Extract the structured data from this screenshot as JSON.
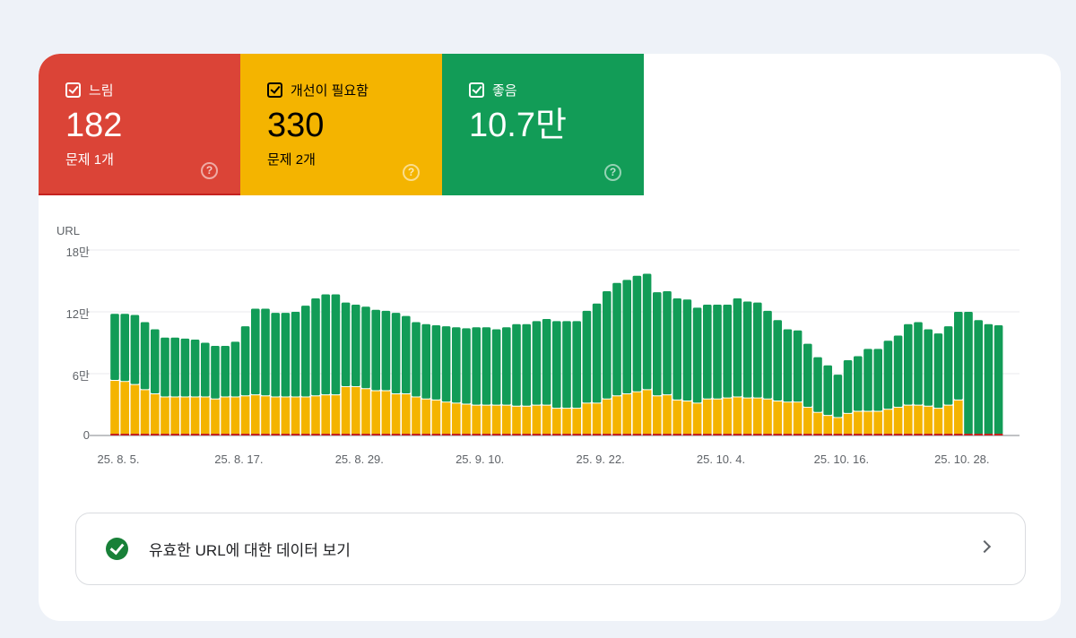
{
  "tiles": [
    {
      "label": "느림",
      "value": "182",
      "issues": "문제 1개",
      "color": "#db4437"
    },
    {
      "label": "개선이 필요함",
      "value": "330",
      "issues": "문제 2개",
      "color": "#f4b400"
    },
    {
      "label": "좋음",
      "value": "10.7만",
      "color": "#129c57"
    }
  ],
  "help_glyph": "?",
  "chart_data": {
    "type": "bar",
    "stacked": true,
    "unit": "만",
    "ylabel": "URL",
    "ylim": [
      0,
      18
    ],
    "y_ticks": [
      {
        "v": 0,
        "label": "0"
      },
      {
        "v": 6,
        "label": "6만"
      },
      {
        "v": 12,
        "label": "12만"
      },
      {
        "v": 18,
        "label": "18만"
      }
    ],
    "x_ticks": [
      {
        "i": 0,
        "label": "25. 8. 5."
      },
      {
        "i": 12,
        "label": "25. 8. 17."
      },
      {
        "i": 24,
        "label": "25. 8. 29."
      },
      {
        "i": 36,
        "label": "25. 9. 10."
      },
      {
        "i": 48,
        "label": "25. 9. 22."
      },
      {
        "i": 60,
        "label": "25. 10. 4."
      },
      {
        "i": 72,
        "label": "25. 10. 16."
      },
      {
        "i": 84,
        "label": "25. 10. 28."
      }
    ],
    "totals": [
      11.8,
      11.8,
      11.7,
      11.0,
      10.3,
      9.5,
      9.5,
      9.4,
      9.3,
      9.0,
      8.7,
      8.7,
      9.1,
      10.6,
      12.3,
      12.3,
      11.9,
      11.9,
      12.0,
      12.6,
      13.3,
      13.7,
      13.7,
      12.9,
      12.7,
      12.5,
      12.2,
      12.1,
      11.9,
      11.6,
      11.0,
      10.8,
      10.7,
      10.6,
      10.5,
      10.4,
      10.5,
      10.5,
      10.3,
      10.5,
      10.8,
      10.8,
      11.1,
      11.3,
      11.1,
      11.1,
      11.1,
      12.1,
      12.8,
      14.0,
      14.8,
      15.1,
      15.5,
      15.7,
      13.9,
      14.0,
      13.3,
      13.2,
      12.4,
      12.7,
      12.7,
      12.7,
      13.3,
      13.0,
      12.9,
      12.1,
      11.2,
      10.3,
      10.2,
      8.9,
      7.6,
      6.8,
      5.9,
      7.3,
      7.7,
      8.4,
      8.4,
      9.2,
      9.7,
      10.8,
      11.0,
      10.3,
      9.9,
      10.6,
      12.0,
      12.0,
      11.2,
      10.8,
      10.7
    ],
    "series": [
      {
        "name": "느림",
        "color": "#c5221f",
        "values": [
          0.02
        ]
      },
      {
        "name": "개선이 필요함",
        "color": "#f4b400",
        "values": [
          5.3,
          5.2,
          4.9,
          4.4,
          4.0,
          3.7,
          3.7,
          3.7,
          3.7,
          3.7,
          3.5,
          3.7,
          3.7,
          3.8,
          3.9,
          3.8,
          3.7,
          3.7,
          3.7,
          3.7,
          3.8,
          3.9,
          3.9,
          4.7,
          4.7,
          4.5,
          4.3,
          4.3,
          4.0,
          4.0,
          3.7,
          3.5,
          3.4,
          3.2,
          3.1,
          3.0,
          2.9,
          2.9,
          2.9,
          2.9,
          2.8,
          2.8,
          2.9,
          2.9,
          2.6,
          2.6,
          2.6,
          3.1,
          3.1,
          3.5,
          3.8,
          4.0,
          4.2,
          4.4,
          3.8,
          3.9,
          3.4,
          3.3,
          3.1,
          3.5,
          3.5,
          3.6,
          3.7,
          3.6,
          3.6,
          3.5,
          3.3,
          3.2,
          3.2,
          2.7,
          2.2,
          1.9,
          1.7,
          2.1,
          2.3,
          2.3,
          2.3,
          2.5,
          2.7,
          2.9,
          2.9,
          2.8,
          2.6,
          2.9,
          3.4,
          0.05,
          0.03,
          0.03,
          0.03
        ]
      },
      {
        "name": "좋음",
        "color": "#129c57"
      }
    ]
  },
  "link": {
    "label": "유효한 URL에 대한 데이터 보기"
  }
}
